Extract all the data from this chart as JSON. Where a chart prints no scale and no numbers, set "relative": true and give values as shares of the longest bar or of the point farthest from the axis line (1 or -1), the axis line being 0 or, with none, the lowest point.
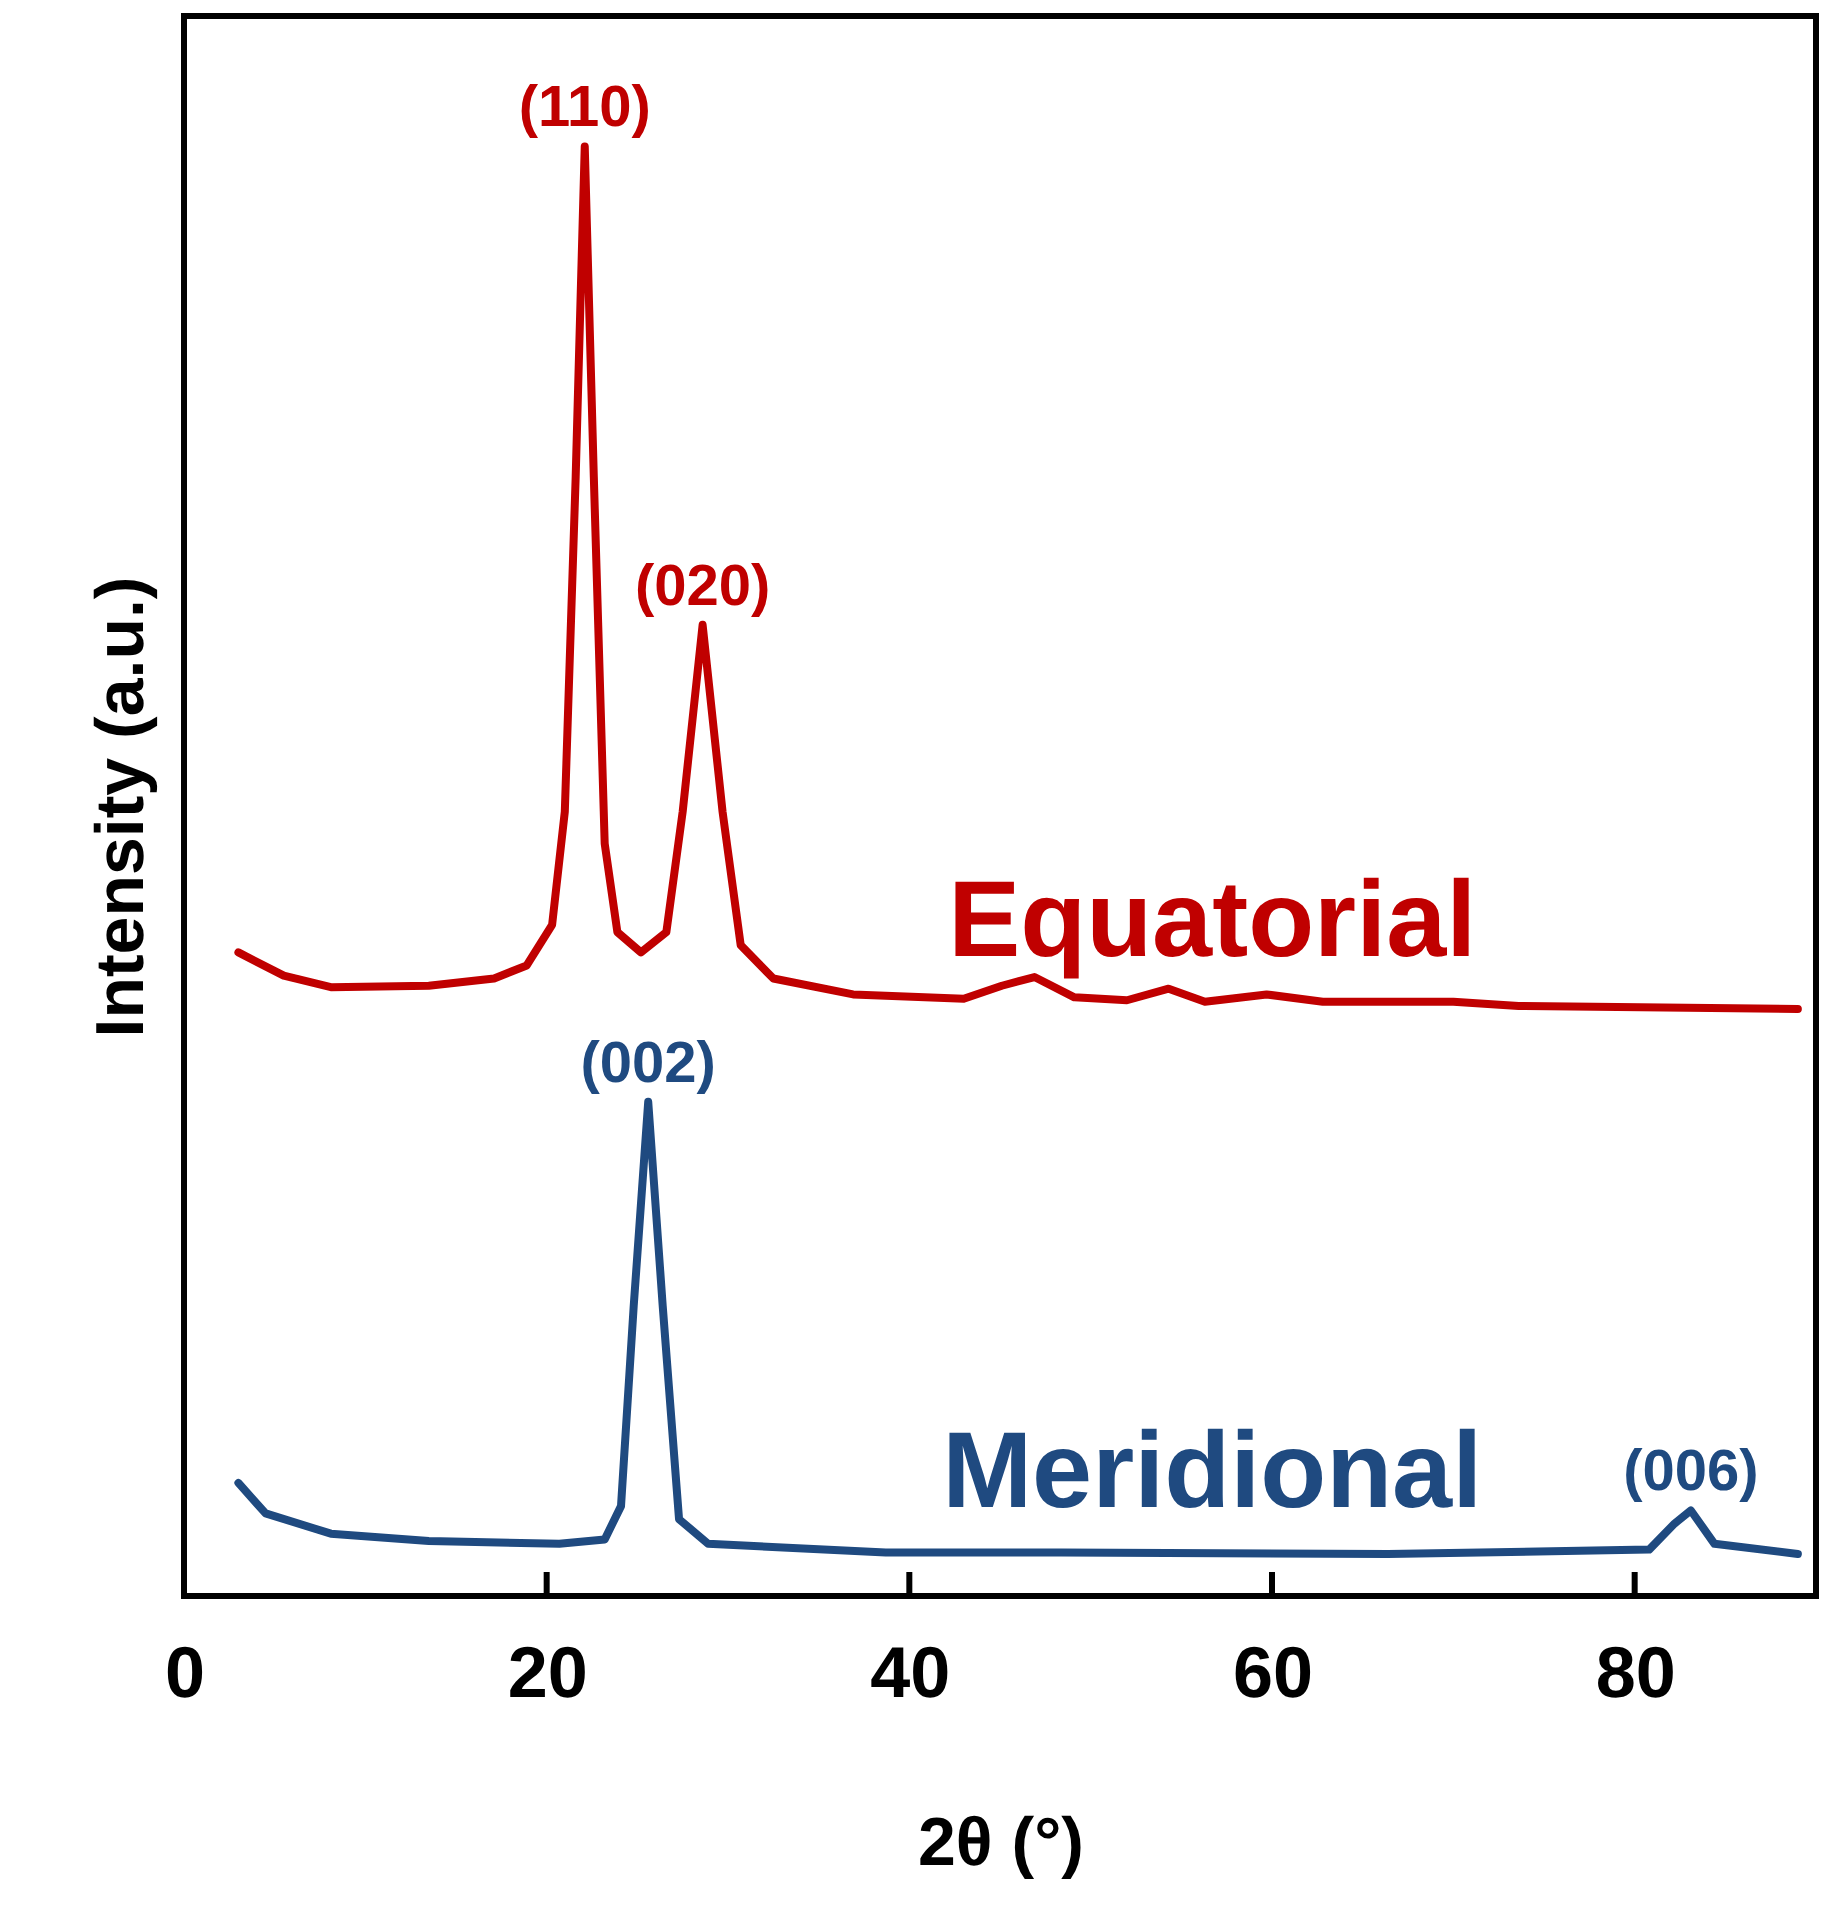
{
  "chart_data": {
    "type": "line",
    "relative": true,
    "xlabel": "2θ (°)",
    "ylabel": "Intensity (a.u.)",
    "xlim": [
      0,
      90
    ],
    "xticks": [
      0,
      20,
      40,
      60,
      80
    ],
    "grid": false,
    "marker": "none",
    "line_style": "solid",
    "series": [
      {
        "name": "Equatorial",
        "color": "#c00000",
        "x": [
          3.0,
          5.5,
          8.1,
          13.5,
          17.1,
          18.9,
          20.3,
          21.0,
          21.6,
          22.1,
          22.6,
          23.2,
          23.9,
          25.2,
          26.6,
          27.5,
          28.6,
          29.7,
          30.7,
          32.5,
          36.9,
          43.0,
          45.1,
          46.9,
          49.1,
          52.0,
          54.3,
          56.3,
          59.7,
          62.8,
          70.0,
          73.6,
          89.0
        ],
        "values": [
          0.444,
          0.428,
          0.42,
          0.421,
          0.426,
          0.435,
          0.463,
          0.541,
          0.772,
          1.0,
          0.772,
          0.519,
          0.458,
          0.444,
          0.458,
          0.541,
          0.67,
          0.541,
          0.449,
          0.426,
          0.415,
          0.412,
          0.421,
          0.427,
          0.413,
          0.411,
          0.419,
          0.41,
          0.415,
          0.41,
          0.41,
          0.407,
          0.405
        ]
      },
      {
        "name": "Meridional",
        "color": "#1f4a80",
        "x": [
          3.0,
          4.5,
          8.1,
          13.5,
          20.7,
          23.2,
          24.1,
          24.8,
          25.6,
          26.4,
          27.3,
          28.9,
          38.7,
          48.4,
          66.4,
          80.8,
          82.2,
          83.1,
          84.4,
          89.0
        ],
        "values": [
          0.078,
          0.057,
          0.043,
          0.038,
          0.036,
          0.039,
          0.062,
          0.2,
          0.341,
          0.2,
          0.053,
          0.036,
          0.03,
          0.03,
          0.029,
          0.032,
          0.05,
          0.059,
          0.036,
          0.029
        ]
      }
    ],
    "annotations": [
      {
        "text": "(110)",
        "x": 22.1,
        "y": 1.0
      },
      {
        "text": "(020)",
        "x": 28.6,
        "y": 0.67
      },
      {
        "text": "(002)",
        "x": 25.6,
        "y": 0.341
      },
      {
        "text": "(006)",
        "x": 83.1,
        "y": 0.059
      }
    ]
  }
}
